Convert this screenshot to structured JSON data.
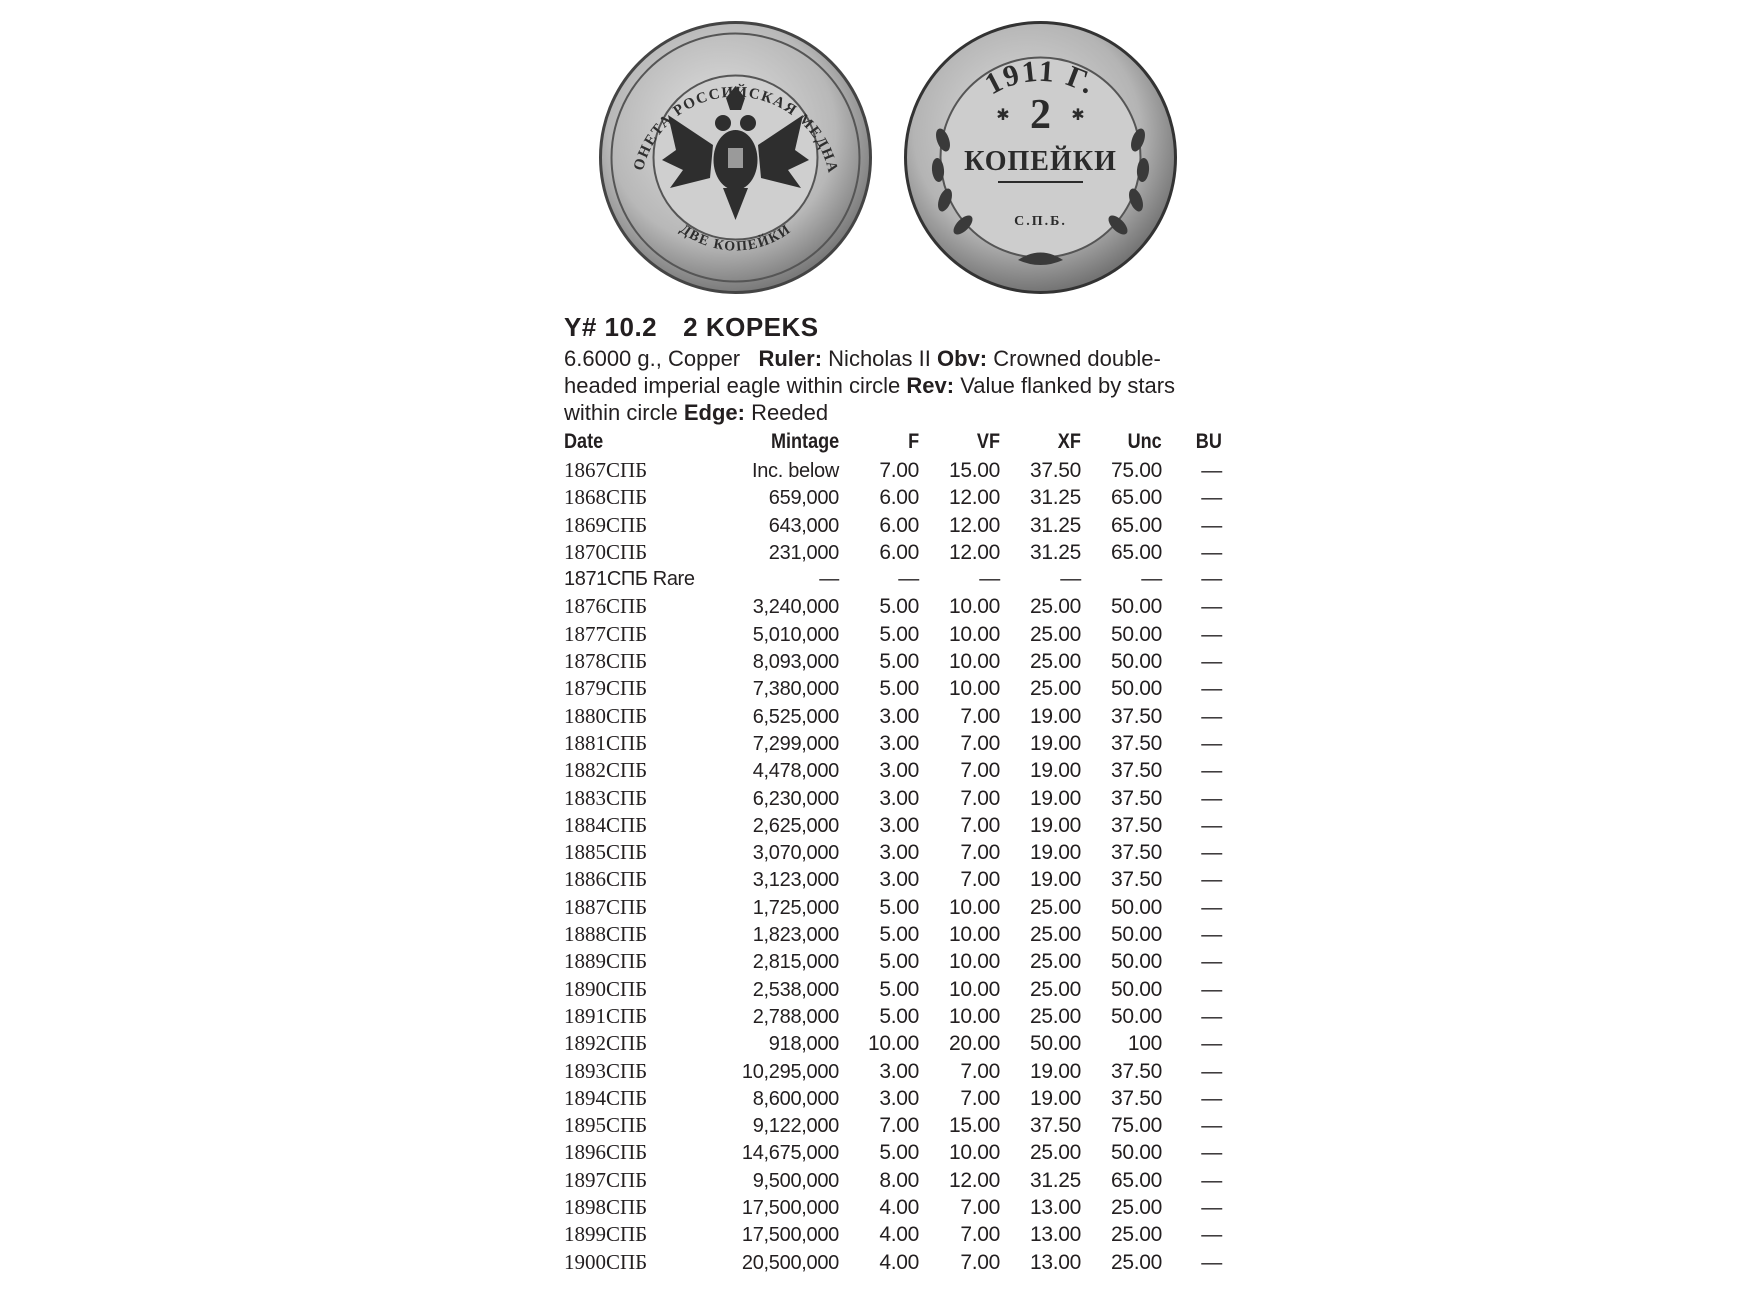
{
  "coins": {
    "obverse": {
      "legend_top": "МОНЕТА РОССИЙСКАЯ МЕДНАЯ",
      "legend_bottom": "ДВЕ КОПЕЙКИ",
      "icon": "double-headed-eagle-icon"
    },
    "reverse": {
      "year": "1911 Г.",
      "value": "2",
      "word": "КОПЕЙКИ",
      "mint": "С.П.Б.",
      "icon": "wreath-icon"
    },
    "colors": {
      "metal_light": "#d4d4d4",
      "metal_mid": "#9a9a9a",
      "metal_dark": "#3a3a3a"
    }
  },
  "catalog": {
    "number": "Y# 10.2",
    "denomination": "2 KOPEKS"
  },
  "description": {
    "weight_metal": "6.6000 g., Copper",
    "ruler_label": "Ruler:",
    "ruler_value": "Nicholas II",
    "obv_label": "Obv:",
    "obv_value": "Crowned double-headed imperial eagle within circle",
    "rev_label": "Rev:",
    "rev_value": "Value flanked by stars within circle",
    "edge_label": "Edge:",
    "edge_value": "Reeded"
  },
  "table": {
    "headers": [
      "Date",
      "Mintage",
      "F",
      "VF",
      "XF",
      "Unc",
      "BU"
    ],
    "rows": [
      [
        "1867СПБ",
        "Inc. below",
        "7.00",
        "15.00",
        "37.50",
        "75.00",
        "—"
      ],
      [
        "1868СПБ",
        "659,000",
        "6.00",
        "12.00",
        "31.25",
        "65.00",
        "—"
      ],
      [
        "1869СПБ",
        "643,000",
        "6.00",
        "12.00",
        "31.25",
        "65.00",
        "—"
      ],
      [
        "1870СПБ",
        "231,000",
        "6.00",
        "12.00",
        "31.25",
        "65.00",
        "—"
      ],
      [
        "1871СПБ Rare",
        "—",
        "—",
        "—",
        "—",
        "—",
        "—"
      ],
      [
        "1876СПБ",
        "3,240,000",
        "5.00",
        "10.00",
        "25.00",
        "50.00",
        "—"
      ],
      [
        "1877СПБ",
        "5,010,000",
        "5.00",
        "10.00",
        "25.00",
        "50.00",
        "—"
      ],
      [
        "1878СПБ",
        "8,093,000",
        "5.00",
        "10.00",
        "25.00",
        "50.00",
        "—"
      ],
      [
        "1879СПБ",
        "7,380,000",
        "5.00",
        "10.00",
        "25.00",
        "50.00",
        "—"
      ],
      [
        "1880СПБ",
        "6,525,000",
        "3.00",
        "7.00",
        "19.00",
        "37.50",
        "—"
      ],
      [
        "1881СПБ",
        "7,299,000",
        "3.00",
        "7.00",
        "19.00",
        "37.50",
        "—"
      ],
      [
        "1882СПБ",
        "4,478,000",
        "3.00",
        "7.00",
        "19.00",
        "37.50",
        "—"
      ],
      [
        "1883СПБ",
        "6,230,000",
        "3.00",
        "7.00",
        "19.00",
        "37.50",
        "—"
      ],
      [
        "1884СПБ",
        "2,625,000",
        "3.00",
        "7.00",
        "19.00",
        "37.50",
        "—"
      ],
      [
        "1885СПБ",
        "3,070,000",
        "3.00",
        "7.00",
        "19.00",
        "37.50",
        "—"
      ],
      [
        "1886СПБ",
        "3,123,000",
        "3.00",
        "7.00",
        "19.00",
        "37.50",
        "—"
      ],
      [
        "1887СПБ",
        "1,725,000",
        "5.00",
        "10.00",
        "25.00",
        "50.00",
        "—"
      ],
      [
        "1888СПБ",
        "1,823,000",
        "5.00",
        "10.00",
        "25.00",
        "50.00",
        "—"
      ],
      [
        "1889СПБ",
        "2,815,000",
        "5.00",
        "10.00",
        "25.00",
        "50.00",
        "—"
      ],
      [
        "1890СПБ",
        "2,538,000",
        "5.00",
        "10.00",
        "25.00",
        "50.00",
        "—"
      ],
      [
        "1891СПБ",
        "2,788,000",
        "5.00",
        "10.00",
        "25.00",
        "50.00",
        "—"
      ],
      [
        "1892СПБ",
        "918,000",
        "10.00",
        "20.00",
        "50.00",
        "100",
        "—"
      ],
      [
        "1893СПБ",
        "10,295,000",
        "3.00",
        "7.00",
        "19.00",
        "37.50",
        "—"
      ],
      [
        "1894СПБ",
        "8,600,000",
        "3.00",
        "7.00",
        "19.00",
        "37.50",
        "—"
      ],
      [
        "1895СПБ",
        "9,122,000",
        "7.00",
        "15.00",
        "37.50",
        "75.00",
        "—"
      ],
      [
        "1896СПБ",
        "14,675,000",
        "5.00",
        "10.00",
        "25.00",
        "50.00",
        "—"
      ],
      [
        "1897СПБ",
        "9,500,000",
        "8.00",
        "12.00",
        "31.25",
        "65.00",
        "—"
      ],
      [
        "1898СПБ",
        "17,500,000",
        "4.00",
        "7.00",
        "13.00",
        "25.00",
        "—"
      ],
      [
        "1899СПБ",
        "17,500,000",
        "4.00",
        "7.00",
        "13.00",
        "25.00",
        "—"
      ],
      [
        "1900СПБ",
        "20,500,000",
        "4.00",
        "7.00",
        "13.00",
        "25.00",
        "—"
      ]
    ]
  }
}
